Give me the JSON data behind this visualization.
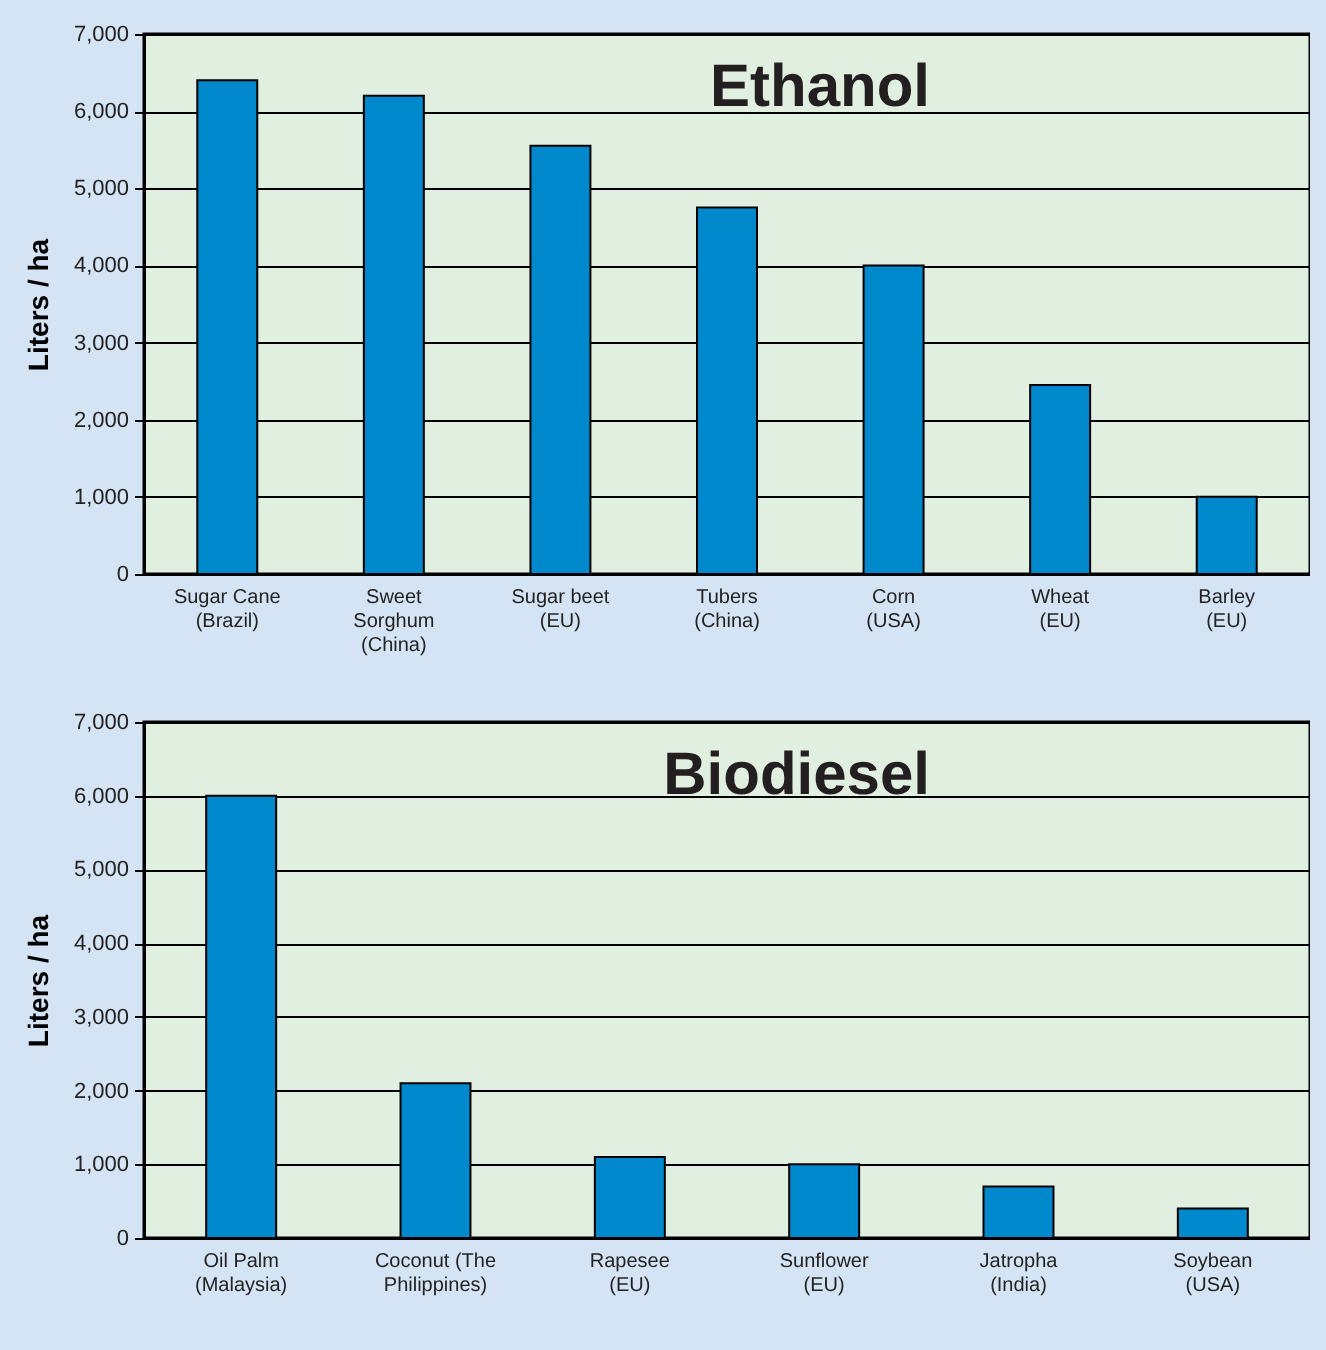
{
  "chart_data": [
    {
      "type": "bar",
      "title": "Ethanol",
      "ylabel": "Liters / ha",
      "categories": [
        "Sugar Cane\n(Brazil)",
        "Sweet\nSorghum\n(China)",
        "Sugar beet\n(EU)",
        "Tubers\n(China)",
        "Corn\n(USA)",
        "Wheat\n(EU)",
        "Barley\n(EU)"
      ],
      "series": [
        {
          "color": "#0088cc",
          "values": [
            6400,
            6200,
            5550,
            4750,
            4000,
            2450,
            1000
          ]
        }
      ],
      "ylim": [
        0,
        7000
      ],
      "yticks": [
        0,
        {
          "value": 1000,
          "label": "1,000"
        },
        {
          "value": 2000,
          "label": "2,000"
        },
        {
          "value": 3000,
          "label": "3,000"
        },
        {
          "value": 4000,
          "label": "4,000"
        },
        {
          "value": 5000,
          "label": "5,000"
        },
        {
          "value": 6000,
          "label": "6,000"
        },
        {
          "value": 7000,
          "label": "7,000"
        }
      ],
      "grid": "y"
    },
    {
      "type": "bar",
      "title": "Biodiesel",
      "ylabel": "Liters / ha",
      "categories": [
        "Oil Palm\n(Malaysia)",
        "Coconut (The\nPhilippines)",
        "Rapesee\n(EU)",
        "Sunflower\n(EU)",
        "Jatropha\n(India)",
        "Soybean\n(USA)"
      ],
      "series": [
        {
          "color": "#0088cc",
          "values": [
            6000,
            2100,
            1100,
            1000,
            700,
            400
          ]
        }
      ],
      "ylim": [
        0,
        7000
      ],
      "yticks": [
        0,
        {
          "value": 1000,
          "label": "1,000"
        },
        {
          "value": 2000,
          "label": "2,000"
        },
        {
          "value": 3000,
          "label": "3,000"
        },
        {
          "value": 4000,
          "label": "4,000"
        },
        {
          "value": 5000,
          "label": "5,000"
        },
        {
          "value": 6000,
          "label": "6,000"
        },
        {
          "value": 7000,
          "label": "7,000"
        }
      ],
      "grid": "y"
    }
  ]
}
